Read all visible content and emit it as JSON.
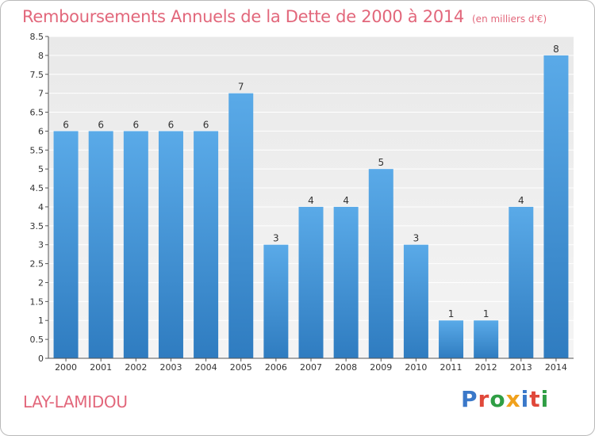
{
  "header": {
    "title": "Remboursements Annuels de la Dette de 2000 à 2014",
    "unit": "(en milliers d'€)"
  },
  "footer": {
    "commune": "LAY-LAMIDOU",
    "logo": "Proxiti",
    "logo_colors": [
      "#3a78c9",
      "#e0483a",
      "#2f9e44",
      "#f0a11c",
      "#3a78c9",
      "#e0483a",
      "#2f9e44"
    ]
  },
  "colors": {
    "bar": "#4d9de0",
    "bar_dark": "#2f7cc0",
    "title": "#e2677b",
    "grid": "#e6e6e6",
    "plot_bg": "#ebebeb"
  },
  "chart_data": {
    "type": "bar",
    "title": "Remboursements Annuels de la Dette de 2000 à 2014",
    "categories": [
      "2000",
      "2001",
      "2002",
      "2003",
      "2004",
      "2005",
      "2006",
      "2007",
      "2008",
      "2009",
      "2010",
      "2011",
      "2012",
      "2013",
      "2014"
    ],
    "values": [
      6,
      6,
      6,
      6,
      6,
      7,
      3,
      4,
      4,
      5,
      3,
      1,
      1,
      4,
      8
    ],
    "ylim": [
      0,
      8.5
    ],
    "yticks": [
      "0",
      "0.5",
      "1",
      "1.5",
      "2",
      "2.5",
      "3",
      "3.5",
      "4",
      "4.5",
      "5",
      "5.5",
      "6",
      "6.5",
      "7",
      "7.5",
      "8",
      "8.5"
    ],
    "grid": true
  }
}
